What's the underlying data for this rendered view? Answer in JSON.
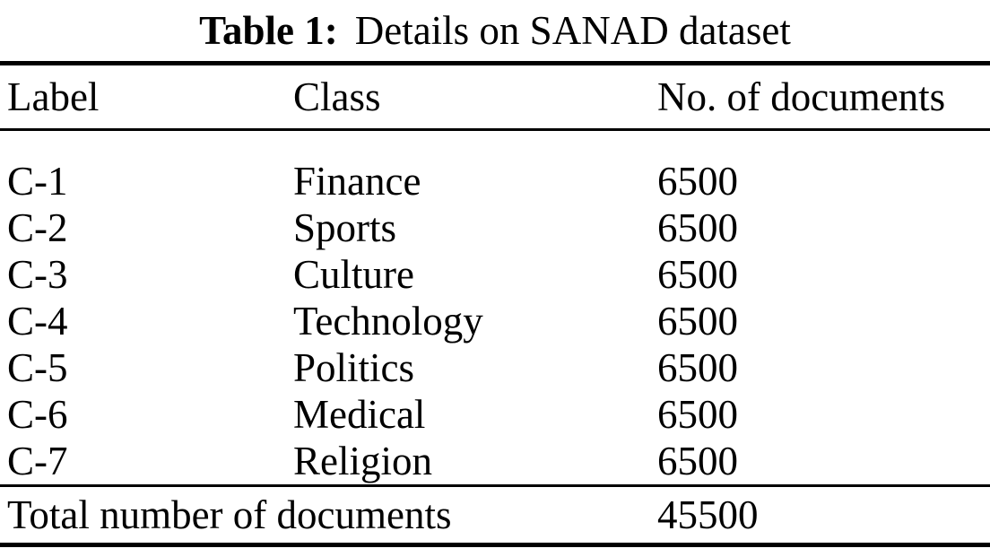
{
  "caption": {
    "label": "Table 1:",
    "text": "Details on SANAD dataset"
  },
  "table": {
    "columns": [
      "Label",
      "Class",
      "No. of documents"
    ],
    "rows": [
      {
        "label": "C-1",
        "class": "Finance",
        "documents": "6500"
      },
      {
        "label": "C-2",
        "class": "Sports",
        "documents": "6500"
      },
      {
        "label": "C-3",
        "class": "Culture",
        "documents": "6500"
      },
      {
        "label": "C-4",
        "class": "Technology",
        "documents": "6500"
      },
      {
        "label": "C-5",
        "class": "Politics",
        "documents": "6500"
      },
      {
        "label": "C-6",
        "class": "Medical",
        "documents": "6500"
      },
      {
        "label": "C-7",
        "class": "Religion",
        "documents": "6500"
      }
    ],
    "footer": {
      "label": "Total number of documents",
      "total": "45500"
    }
  },
  "colors": {
    "text": "#000000",
    "background": "#ffffff",
    "rule": "#000000"
  }
}
